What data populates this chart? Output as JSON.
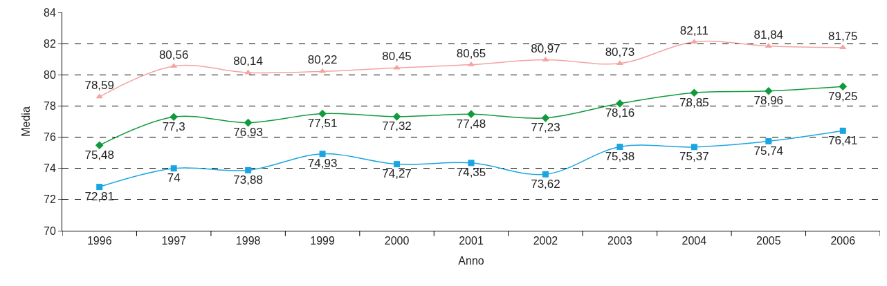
{
  "chart_data": {
    "type": "line",
    "xlabel": "Anno",
    "ylabel": "Media",
    "categories": [
      "1996",
      "1997",
      "1998",
      "1999",
      "2000",
      "2001",
      "2002",
      "2003",
      "2004",
      "2005",
      "2006"
    ],
    "ylim": [
      70,
      84
    ],
    "yticks": [
      70,
      72,
      74,
      76,
      78,
      80,
      82,
      84
    ],
    "grid": "y",
    "legend": false,
    "series": [
      {
        "color": "#f4a3a3",
        "marker": "triangle",
        "values": [
          78.59,
          80.56,
          80.14,
          80.22,
          80.45,
          80.65,
          80.97,
          80.73,
          82.11,
          81.84,
          81.75
        ],
        "value_labels": [
          "78,59",
          "80,56",
          "80,14",
          "80,22",
          "80,45",
          "80,65",
          "80,97",
          "80,73",
          "82,11",
          "81,84",
          "81,75"
        ]
      },
      {
        "color": "#109a3c",
        "marker": "diamond",
        "values": [
          75.48,
          77.3,
          76.93,
          77.51,
          77.32,
          77.48,
          77.23,
          78.16,
          78.85,
          78.96,
          79.25
        ],
        "value_labels": [
          "75,48",
          "77,3",
          "76,93",
          "77,51",
          "77,32",
          "77,48",
          "77,23",
          "78,16",
          "78,85",
          "78,96",
          "79,25"
        ]
      },
      {
        "color": "#1aa5e0",
        "marker": "square",
        "values": [
          72.81,
          74,
          73.88,
          74.93,
          74.27,
          74.35,
          73.62,
          75.38,
          75.37,
          75.74,
          76.41
        ],
        "value_labels": [
          "72,81",
          "74",
          "73,88",
          "74,93",
          "74,27",
          "74,35",
          "73,62",
          "75,38",
          "75,37",
          "75,74",
          "76,41"
        ]
      }
    ]
  }
}
